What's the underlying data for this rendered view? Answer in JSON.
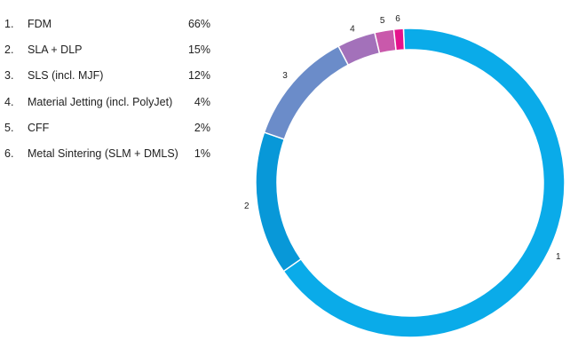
{
  "chart_data": {
    "type": "pie",
    "variant": "donut",
    "legend_placement": "left",
    "categories": [
      "FDM",
      "SLA + DLP",
      "SLS (incl. MJF)",
      "Material Jetting (incl. PolyJet)",
      "CFF",
      "Metal Sintering (SLM + DMLS)"
    ],
    "values": [
      66,
      15,
      12,
      4,
      2,
      1
    ],
    "colors": [
      "#0aabe9",
      "#0898d8",
      "#6b8cc9",
      "#a371ba",
      "#c959ab",
      "#e5138c"
    ],
    "legend": [
      {
        "number": "1.",
        "label": "FDM",
        "percent": "66%"
      },
      {
        "number": "2.",
        "label": "SLA + DLP",
        "percent": "15%"
      },
      {
        "number": "3.",
        "label": "SLS (incl. MJF)",
        "percent": "12%"
      },
      {
        "number": "4.",
        "label": "Material Jetting (incl. PolyJet)",
        "percent": "4%"
      },
      {
        "number": "5.",
        "label": "CFF",
        "percent": "2%"
      },
      {
        "number": "6.",
        "label": "Metal Sintering (SLM + DMLS)",
        "percent": "1%"
      }
    ],
    "slice_labels": [
      "1",
      "2",
      "3",
      "4",
      "5",
      "6"
    ]
  }
}
